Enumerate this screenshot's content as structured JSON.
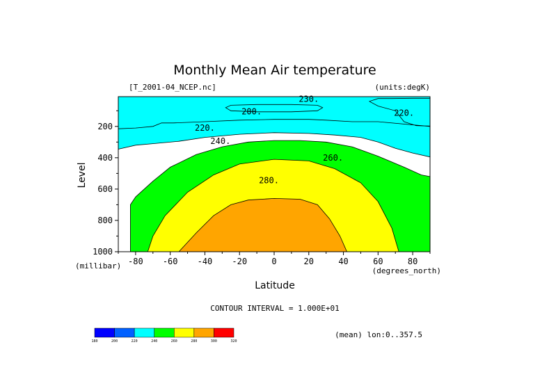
{
  "chart_data": {
    "type": "contour",
    "title": "Monthly Mean Air temperature",
    "source_file": "[T_2001-04_NCEP.nc]",
    "units": "(units:degK)",
    "xlabel": "Latitude",
    "x_units": "(degrees_north)",
    "ylabel": "Level",
    "y_units": "(millibar)",
    "xlim": [
      -90,
      90
    ],
    "ylim": [
      1000,
      10
    ],
    "x_ticks": [
      -80,
      -60,
      -40,
      -20,
      0,
      20,
      40,
      60,
      80
    ],
    "x_tick_labels": [
      "-80",
      "-60",
      "-40",
      "-20",
      "0",
      "20",
      "40",
      "60",
      "80"
    ],
    "y_ticks": [
      200,
      400,
      600,
      800,
      1000
    ],
    "y_tick_labels": [
      "200",
      "400",
      "600",
      "800",
      "1000"
    ],
    "contour_interval_text": "CONTOUR INTERVAL = 1.000E+01",
    "contour_labels": [
      "230.",
      "200.",
      "220.",
      "220.",
      "240.",
      "260.",
      "280."
    ],
    "colorbar": {
      "levels": [
        "180",
        "200",
        "220",
        "240",
        "260",
        "280",
        "300",
        "320"
      ],
      "colors": [
        "#0000ff",
        "#0060ff",
        "#00ffff",
        "#00ff00",
        "#ffff00",
        "#ffa500",
        "#ff0000"
      ]
    },
    "footnote": "(mean) lon:0..357.5",
    "bands": [
      {
        "min": 180,
        "max": 200,
        "color": "#0000ff",
        "boundary": [
          [
            -25,
            65
          ],
          [
            -10,
            60
          ],
          [
            10,
            60
          ],
          [
            25,
            65
          ],
          [
            28,
            80
          ],
          [
            25,
            100
          ],
          [
            10,
            107
          ],
          [
            -10,
            107
          ],
          [
            -25,
            100
          ],
          [
            -28,
            80
          ]
        ]
      },
      {
        "min": 200,
        "max": 220,
        "color": "#0060ff",
        "boundary": [
          [
            -90,
            10
          ],
          [
            90,
            10
          ],
          [
            90,
            20
          ],
          [
            80,
            20
          ],
          [
            68,
            22
          ],
          [
            60,
            22
          ],
          [
            55,
            40
          ],
          [
            60,
            70
          ],
          [
            70,
            100
          ],
          [
            75,
            170
          ],
          [
            82,
            195
          ],
          [
            90,
            198
          ],
          [
            90,
            200
          ],
          [
            60,
            170
          ],
          [
            45,
            170
          ],
          [
            30,
            160
          ],
          [
            20,
            155
          ],
          [
            0,
            155
          ],
          [
            -20,
            160
          ],
          [
            -40,
            170
          ],
          [
            -58,
            178
          ],
          [
            -65,
            178
          ],
          [
            -70,
            200
          ],
          [
            -80,
            210
          ],
          [
            -90,
            215
          ]
        ]
      },
      {
        "min": 220,
        "max": 240,
        "color": "#00ffff",
        "boundary": [
          [
            -90,
            345
          ],
          [
            -80,
            320
          ],
          [
            -70,
            310
          ],
          [
            -55,
            295
          ],
          [
            -40,
            270
          ],
          [
            -20,
            250
          ],
          [
            0,
            240
          ],
          [
            20,
            245
          ],
          [
            35,
            255
          ],
          [
            50,
            270
          ],
          [
            60,
            300
          ],
          [
            70,
            340
          ],
          [
            80,
            370
          ],
          [
            90,
            395
          ],
          [
            90,
            10
          ],
          [
            -90,
            10
          ]
        ]
      },
      {
        "min": 240,
        "max": 260,
        "color": "#00ff00",
        "boundary": [
          [
            -83,
            1000
          ],
          [
            -83,
            700
          ],
          [
            -80,
            650
          ],
          [
            -70,
            550
          ],
          [
            -60,
            460
          ],
          [
            -45,
            380
          ],
          [
            -30,
            330
          ],
          [
            -15,
            300
          ],
          [
            0,
            290
          ],
          [
            15,
            290
          ],
          [
            30,
            300
          ],
          [
            45,
            330
          ],
          [
            60,
            390
          ],
          [
            75,
            460
          ],
          [
            85,
            510
          ],
          [
            90,
            520
          ],
          [
            90,
            1000
          ]
        ]
      },
      {
        "min": 260,
        "max": 280,
        "color": "#ffff00",
        "boundary": [
          [
            -73,
            1000
          ],
          [
            -70,
            900
          ],
          [
            -63,
            770
          ],
          [
            -50,
            620
          ],
          [
            -35,
            510
          ],
          [
            -20,
            440
          ],
          [
            0,
            410
          ],
          [
            20,
            420
          ],
          [
            35,
            470
          ],
          [
            50,
            560
          ],
          [
            60,
            680
          ],
          [
            68,
            850
          ],
          [
            72,
            1000
          ]
        ]
      },
      {
        "min": 280,
        "max": 300,
        "color": "#ffa500",
        "boundary": [
          [
            -55,
            1000
          ],
          [
            -45,
            880
          ],
          [
            -35,
            770
          ],
          [
            -25,
            700
          ],
          [
            -15,
            670
          ],
          [
            0,
            660
          ],
          [
            15,
            665
          ],
          [
            25,
            700
          ],
          [
            32,
            790
          ],
          [
            38,
            900
          ],
          [
            42,
            1000
          ]
        ]
      }
    ]
  }
}
